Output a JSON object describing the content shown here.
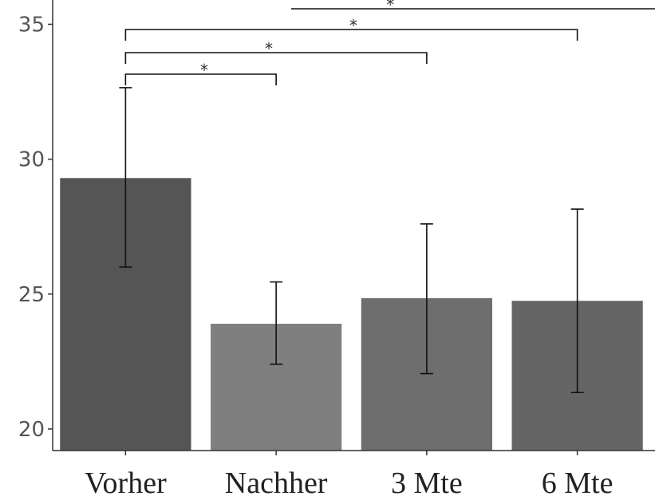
{
  "chart_data": {
    "type": "bar",
    "title": "",
    "xlabel": "",
    "ylabel": "",
    "categories": [
      "Vorher",
      "Nachher",
      "3 Mte",
      "6 Mte"
    ],
    "values": [
      29.3,
      23.9,
      24.85,
      24.75
    ],
    "error_low": [
      26.0,
      22.4,
      22.05,
      21.35
    ],
    "error_high": [
      32.65,
      25.45,
      27.6,
      28.15
    ],
    "ylim": [
      19.2,
      35.9
    ],
    "yticks": [
      "20",
      "25",
      "30",
      "35"
    ],
    "bar_colors": [
      "#555555",
      "#7f7f7f",
      "#6e6e6e",
      "#656565"
    ],
    "significance": [
      {
        "from": "Vorher",
        "to": "Nachher",
        "label": "*"
      },
      {
        "from": "Vorher",
        "to": "3 Mte",
        "label": "*"
      },
      {
        "from": "Vorher",
        "to": "6 Mte",
        "label": "*"
      },
      {
        "from": "Vorher",
        "to": "",
        "label": "*"
      }
    ],
    "grid": false,
    "legend": "none"
  }
}
